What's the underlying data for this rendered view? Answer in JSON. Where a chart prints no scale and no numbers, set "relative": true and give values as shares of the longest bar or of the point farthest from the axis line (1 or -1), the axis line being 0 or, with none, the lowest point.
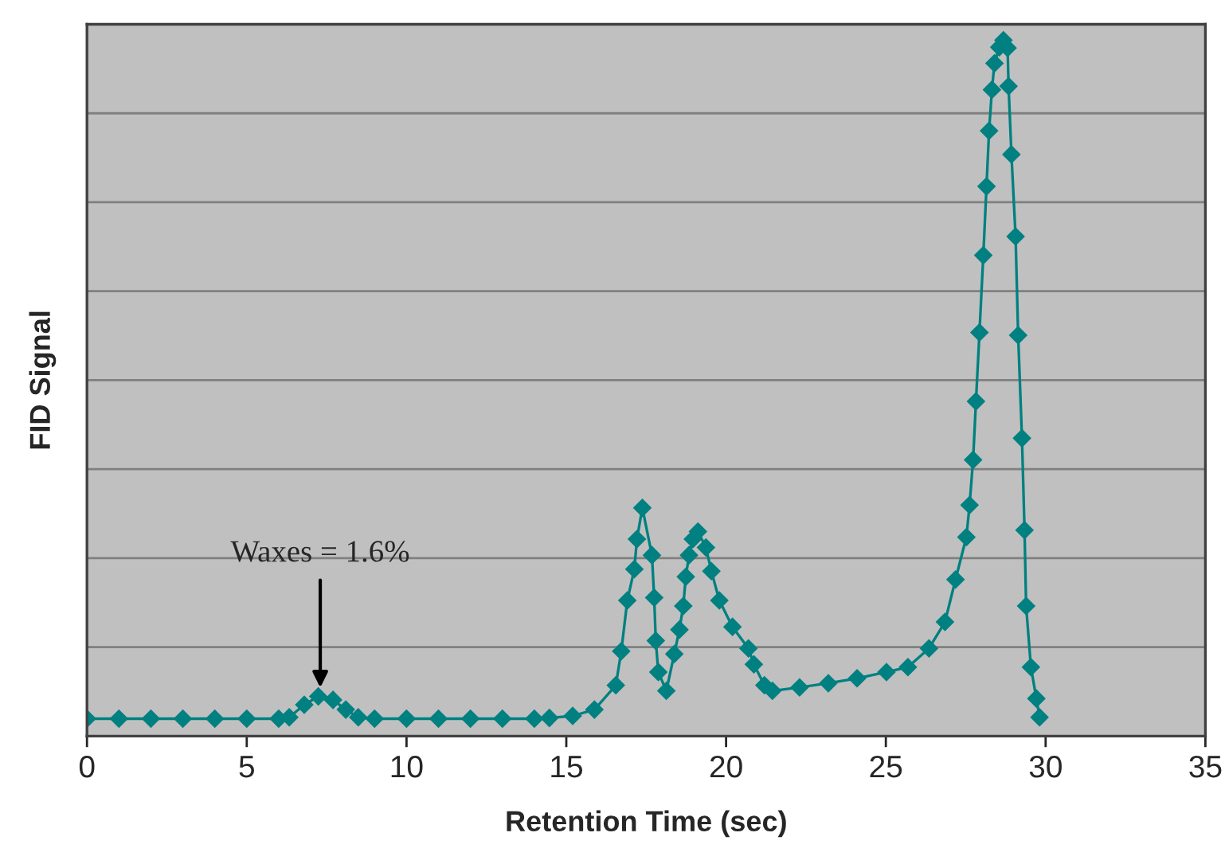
{
  "chart_data": {
    "type": "line",
    "xlabel": "Retention Time (sec)",
    "ylabel": "FID Signal",
    "relative": true,
    "xlim": [
      0,
      35
    ],
    "xticks": [
      0,
      5,
      10,
      15,
      20,
      25,
      30,
      35
    ],
    "tick_labels": "x",
    "grid": "y",
    "marker": "diamond",
    "line_style": "solid",
    "annotations": [
      {
        "text": "Waxes = 1.6%",
        "x": 7.3,
        "y": 0.057
      }
    ],
    "series": [
      {
        "color": "#008080",
        "x": [
          0,
          1,
          2,
          3,
          4,
          5,
          6,
          6.33,
          6.8,
          7.24,
          7.7,
          8.1,
          8.49,
          9,
          10,
          11,
          12,
          13,
          14,
          14.47,
          15.2,
          15.88,
          16.55,
          16.72,
          16.91,
          17.13,
          17.21,
          17.38,
          17.68,
          17.75,
          17.8,
          17.88,
          18.13,
          18.38,
          18.54,
          18.66,
          18.74,
          18.84,
          18.96,
          19.12,
          19.37,
          19.54,
          19.79,
          20.2,
          20.7,
          20.87,
          21.2,
          21.45,
          22.3,
          23.2,
          24.1,
          25.02,
          25.69,
          26.35,
          26.85,
          27.18,
          27.52,
          27.62,
          27.73,
          27.82,
          27.93,
          28.05,
          28.15,
          28.23,
          28.32,
          28.4,
          28.55,
          28.68,
          28.81,
          28.84,
          28.93,
          29.06,
          29.14,
          29.26,
          29.34,
          29.39,
          29.54,
          29.71,
          29.81
        ],
        "values": [
          0.025,
          0.025,
          0.025,
          0.025,
          0.025,
          0.025,
          0.025,
          0.027,
          0.045,
          0.057,
          0.052,
          0.038,
          0.027,
          0.025,
          0.025,
          0.025,
          0.025,
          0.025,
          0.025,
          0.026,
          0.029,
          0.038,
          0.073,
          0.122,
          0.195,
          0.24,
          0.283,
          0.328,
          0.26,
          0.199,
          0.137,
          0.092,
          0.065,
          0.118,
          0.153,
          0.187,
          0.229,
          0.26,
          0.283,
          0.294,
          0.271,
          0.237,
          0.195,
          0.157,
          0.126,
          0.103,
          0.073,
          0.065,
          0.07,
          0.076,
          0.083,
          0.092,
          0.099,
          0.126,
          0.164,
          0.225,
          0.286,
          0.332,
          0.397,
          0.481,
          0.58,
          0.691,
          0.79,
          0.87,
          0.929,
          0.967,
          0.99,
          1.0,
          0.989,
          0.934,
          0.836,
          0.718,
          0.576,
          0.428,
          0.296,
          0.187,
          0.099,
          0.054,
          0.027
        ]
      }
    ]
  }
}
